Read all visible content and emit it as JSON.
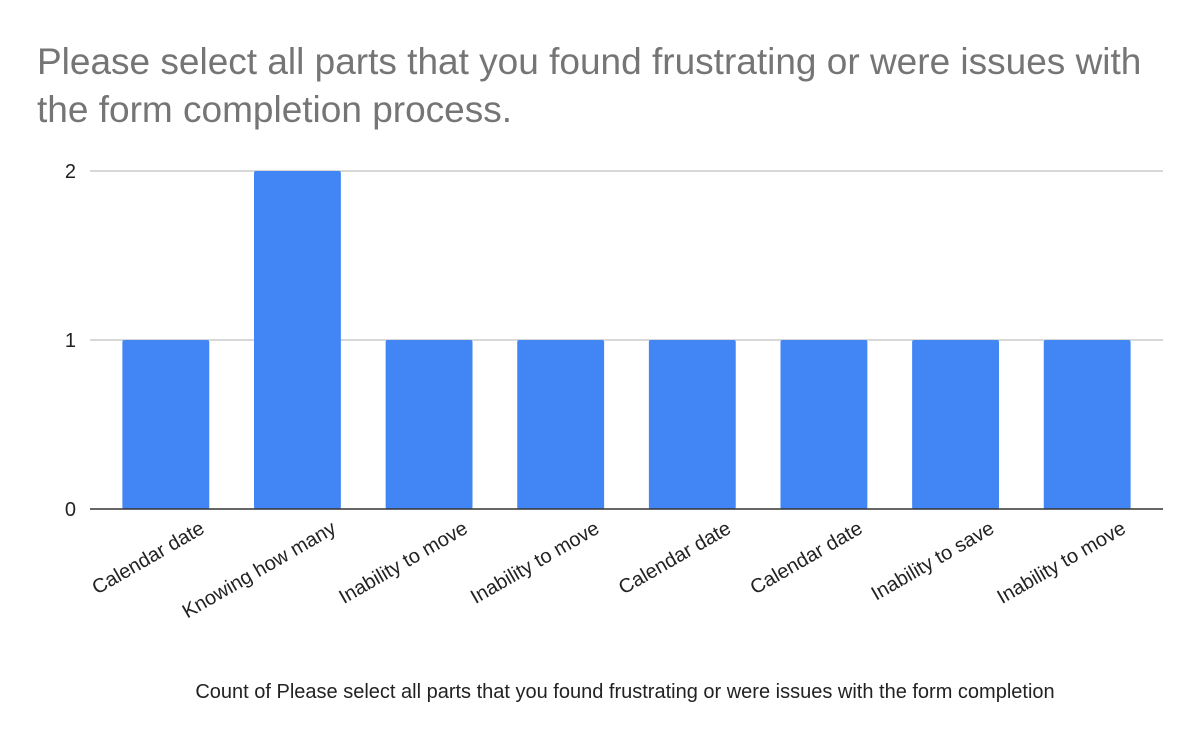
{
  "chart_data": {
    "type": "bar",
    "title": "Please select all parts that you found frustrating or were issues with the form completion process.",
    "xlabel": "Count of Please select all parts that you found frustrating or were issues with the form completion",
    "ylabel": "",
    "categories": [
      "Calendar date",
      "Knowing how many",
      "Inability to move",
      "Inability to move",
      "Calendar date",
      "Calendar date",
      "Inability to save",
      "Inability to move"
    ],
    "values": [
      1,
      2,
      1,
      1,
      1,
      1,
      1,
      1
    ],
    "ylim": [
      0,
      2
    ],
    "yticks": [
      "0",
      "1",
      "2"
    ],
    "grid": true,
    "legend": "none",
    "bar_color": "#4285f4",
    "grid_color": "#cccccc",
    "axis_color": "#333333",
    "title_color": "#757575"
  }
}
